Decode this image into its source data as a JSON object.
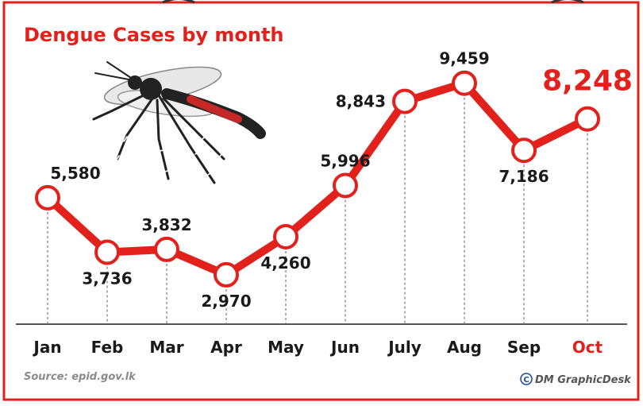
{
  "chart_data": {
    "type": "line",
    "title": "Dengue Cases by month",
    "categories": [
      "Jan",
      "Feb",
      "Mar",
      "Apr",
      "May",
      "Jun",
      "July",
      "Aug",
      "Sep",
      "Oct"
    ],
    "values": [
      5580,
      3736,
      3832,
      2970,
      4260,
      5996,
      8843,
      9459,
      7186,
      8248
    ],
    "value_labels": [
      "5,580",
      "3,736",
      "3,832",
      "2,970",
      "4,260",
      "5,996",
      "8,843",
      "9,459",
      "7,186",
      "8,248"
    ],
    "highlight_index": 9,
    "ylim": [
      1300,
      11200
    ],
    "xlabel": "",
    "ylabel": "",
    "grid": false,
    "colors": {
      "line": "#e3211c",
      "accent": "#e3211c",
      "marker_fill": "#ffffff",
      "text": "#1a1a1a"
    }
  },
  "footer": {
    "source": "Source: epid.gov.lk",
    "credit": "DM GraphicDesk"
  }
}
